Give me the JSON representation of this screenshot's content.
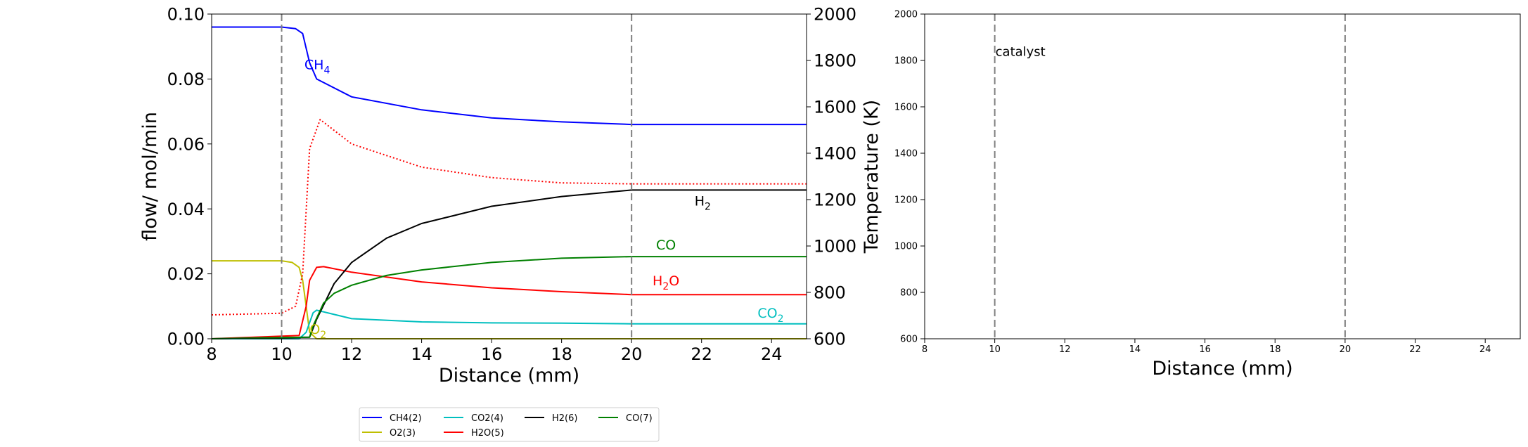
{
  "chart_data": [
    {
      "type": "line",
      "xlabel": "Distance (mm)",
      "ylabel": "flow/ mol/min",
      "ylabel_right": "Temperature (K)",
      "xlim": [
        8,
        25
      ],
      "ylim": [
        0,
        0.1
      ],
      "ylim_right": [
        600,
        2000
      ],
      "xticks": [
        "8",
        "10",
        "12",
        "14",
        "16",
        "18",
        "20",
        "22",
        "24"
      ],
      "yticks": [
        "0.00",
        "0.02",
        "0.04",
        "0.06",
        "0.08",
        "0.10"
      ],
      "yticks_right": [
        "600",
        "800",
        "1000",
        "1200",
        "1400",
        "1600",
        "1800",
        "2000"
      ],
      "vlines": [
        10,
        20
      ],
      "grid": false,
      "legend_position": "below",
      "series": [
        {
          "name": "CH4(2)",
          "color": "#0000ff",
          "x": [
            8,
            10,
            10.4,
            10.6,
            10.8,
            11,
            12,
            14,
            16,
            18,
            20,
            25
          ],
          "y": [
            0.096,
            0.096,
            0.0955,
            0.094,
            0.085,
            0.08,
            0.0745,
            0.0705,
            0.068,
            0.0668,
            0.066,
            0.066
          ]
        },
        {
          "name": "O2(3)",
          "color": "#bfbf00",
          "x": [
            8,
            10,
            10.3,
            10.5,
            10.6,
            10.7,
            10.8,
            11,
            25
          ],
          "y": [
            0.024,
            0.024,
            0.0235,
            0.022,
            0.018,
            0.01,
            0.002,
            0,
            0
          ]
        },
        {
          "name": "CO2(4)",
          "color": "#00bfbf",
          "x": [
            8,
            10.5,
            10.7,
            10.9,
            11,
            11.5,
            12,
            14,
            16,
            18,
            20,
            25
          ],
          "y": [
            0,
            0,
            0.002,
            0.008,
            0.0088,
            0.0075,
            0.0062,
            0.0052,
            0.0049,
            0.0048,
            0.0046,
            0.0046
          ]
        },
        {
          "name": "H2O(5)",
          "color": "#ff0000",
          "x": [
            8,
            10.5,
            10.7,
            10.8,
            11,
            11.2,
            12,
            14,
            16,
            18,
            20,
            25
          ],
          "y": [
            0,
            0.001,
            0.01,
            0.018,
            0.022,
            0.0222,
            0.0205,
            0.0175,
            0.0157,
            0.0145,
            0.0136,
            0.0136
          ]
        },
        {
          "name": "H2(6)",
          "color": "#000000",
          "x": [
            8,
            10.8,
            11,
            11.5,
            12,
            13,
            14,
            16,
            18,
            20,
            25
          ],
          "y": [
            0,
            0.0005,
            0.006,
            0.017,
            0.0235,
            0.031,
            0.0355,
            0.0408,
            0.0438,
            0.0458,
            0.0458
          ]
        },
        {
          "name": "CO(7)",
          "color": "#008000",
          "x": [
            8,
            10.8,
            10.9,
            11.2,
            11.5,
            12,
            13,
            14,
            16,
            18,
            20,
            25
          ],
          "y": [
            0,
            0.0005,
            0.004,
            0.011,
            0.014,
            0.0165,
            0.0195,
            0.0212,
            0.0235,
            0.0248,
            0.0253,
            0.0253
          ]
        },
        {
          "name": "",
          "axis": "right",
          "style": "dotted",
          "color": "#ff0000",
          "x": [
            8,
            10,
            10.4,
            10.6,
            10.8,
            11.1,
            12,
            14,
            16,
            18,
            20,
            25
          ],
          "y": [
            703,
            710,
            740,
            880,
            1420,
            1545,
            1440,
            1340,
            1295,
            1272,
            1268,
            1268
          ]
        }
      ],
      "annotations": [
        {
          "text": "CH",
          "sub": "4",
          "x": 10.65,
          "y": 0.083,
          "color": "#0000ff"
        },
        {
          "text": "H",
          "sub": "2",
          "x": 21.8,
          "y": 0.041,
          "color": "#000000"
        },
        {
          "text": "CO",
          "sub": "",
          "x": 20.7,
          "y": 0.0275,
          "color": "#008000"
        },
        {
          "text": "H",
          "sub": "2",
          "x2": "O",
          "x": 20.6,
          "y": 0.0165,
          "color": "#ff0000"
        },
        {
          "text": "CO",
          "sub": "2",
          "x": 23.6,
          "y": 0.0065,
          "color": "#00bfbf"
        },
        {
          "text": "O",
          "sub": "2",
          "x": 10.8,
          "y": 0.0015,
          "color": "#bfbf00"
        }
      ]
    },
    {
      "type": "line",
      "xlabel": "Distance (mm)",
      "ylabel": "",
      "xlim": [
        8,
        25
      ],
      "ylim": [
        600,
        2000
      ],
      "xticks": [
        "8",
        "10",
        "12",
        "14",
        "16",
        "18",
        "20",
        "22",
        "24"
      ],
      "yticks": [
        "600",
        "800",
        "1000",
        "1200",
        "1400",
        "1600",
        "1800",
        "2000"
      ],
      "vlines": [
        10,
        20
      ],
      "grid": false,
      "series": [],
      "annotations": [
        {
          "text": "catalyst",
          "x": 10,
          "y": 1820,
          "color": "#000000"
        }
      ]
    }
  ],
  "legend": {
    "columns": 4,
    "entries": [
      {
        "label": "CH4(2)",
        "color": "#0000ff"
      },
      {
        "label": "CO2(4)",
        "color": "#00bfbf"
      },
      {
        "label": "H2(6)",
        "color": "#000000"
      },
      {
        "label": "CO(7)",
        "color": "#008000"
      },
      {
        "label": "O2(3)",
        "color": "#bfbf00"
      },
      {
        "label": "H2O(5)",
        "color": "#ff0000"
      }
    ]
  }
}
